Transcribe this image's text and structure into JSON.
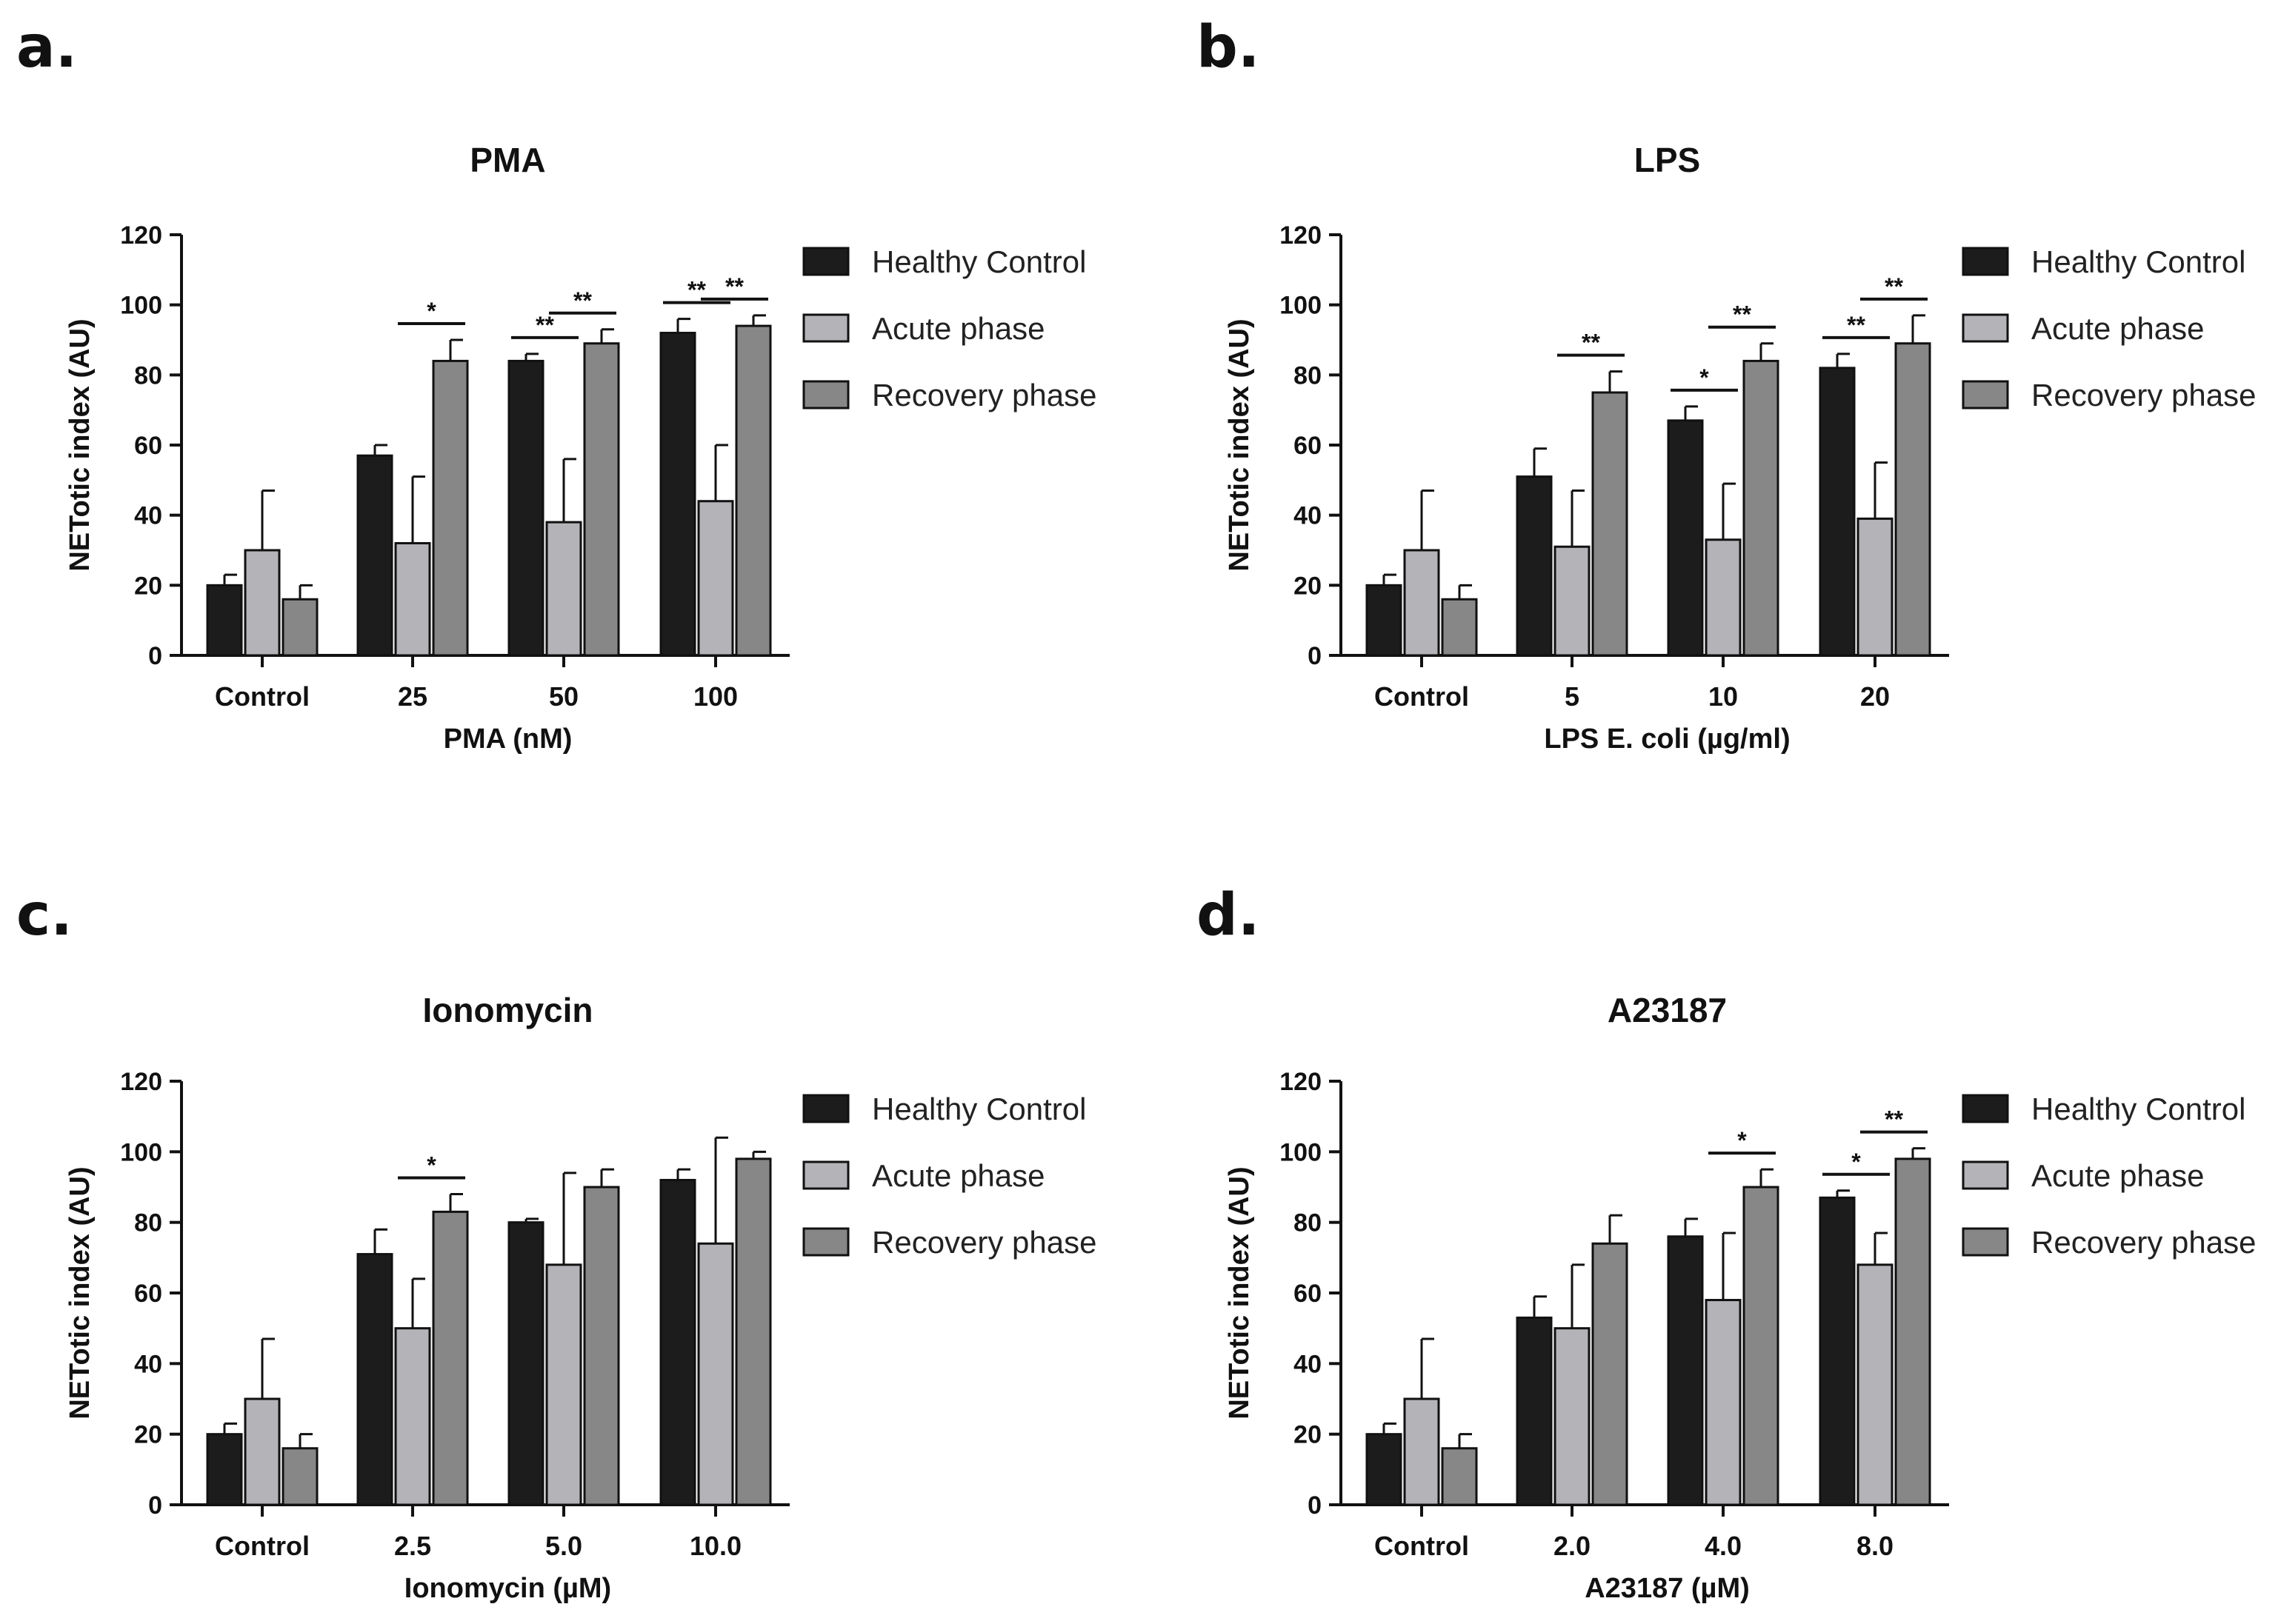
{
  "series_names": [
    "Healthy Control",
    "Acute phase",
    "Recovery phase"
  ],
  "series_colors": [
    "#1c1c1c",
    "#b3b3b8",
    "#878787"
  ],
  "chart_data": [
    {
      "panel_label": "a.",
      "type": "bar",
      "title": "PMA",
      "xlabel": "PMA (nM)",
      "ylabel": "NETotic index (AU)",
      "ylim": [
        0,
        120
      ],
      "yticks": [
        "0",
        "20",
        "40",
        "60",
        "80",
        "100",
        "120"
      ],
      "categories": [
        "Control",
        "25",
        "50",
        "100"
      ],
      "series": [
        {
          "name": "Healthy Control",
          "values": [
            20,
            57,
            84,
            92
          ],
          "errors": [
            3,
            3,
            2,
            4
          ]
        },
        {
          "name": "Acute phase",
          "values": [
            30,
            32,
            38,
            44
          ],
          "errors": [
            17,
            19,
            18,
            16
          ]
        },
        {
          "name": "Recovery phase",
          "values": [
            16,
            84,
            89,
            94
          ],
          "errors": [
            4,
            6,
            4,
            3
          ]
        }
      ],
      "significance": [
        {
          "category": 1,
          "from": 1,
          "to": 2,
          "label": "*"
        },
        {
          "category": 2,
          "from": 0,
          "to": 1,
          "label": "**"
        },
        {
          "category": 2,
          "from": 1,
          "to": 2,
          "label": "**"
        },
        {
          "category": 3,
          "from": 0,
          "to": 1,
          "label": "**"
        },
        {
          "category": 3,
          "from": 1,
          "to": 2,
          "label": "**"
        }
      ]
    },
    {
      "panel_label": "b.",
      "type": "bar",
      "title": "LPS",
      "xlabel": "LPS E. coli (µg/ml)",
      "ylabel": "NETotic index (AU)",
      "ylim": [
        0,
        120
      ],
      "yticks": [
        "0",
        "20",
        "40",
        "60",
        "80",
        "100",
        "120"
      ],
      "categories": [
        "Control",
        "5",
        "10",
        "20"
      ],
      "series": [
        {
          "name": "Healthy Control",
          "values": [
            20,
            51,
            67,
            82
          ],
          "errors": [
            3,
            8,
            4,
            4
          ]
        },
        {
          "name": "Acute phase",
          "values": [
            30,
            31,
            33,
            39
          ],
          "errors": [
            17,
            16,
            16,
            16
          ]
        },
        {
          "name": "Recovery phase",
          "values": [
            16,
            75,
            84,
            89
          ],
          "errors": [
            4,
            6,
            5,
            8
          ]
        }
      ],
      "significance": [
        {
          "category": 1,
          "from": 1,
          "to": 2,
          "label": "**"
        },
        {
          "category": 2,
          "from": 0,
          "to": 1,
          "label": "*"
        },
        {
          "category": 2,
          "from": 1,
          "to": 2,
          "label": "**"
        },
        {
          "category": 3,
          "from": 0,
          "to": 1,
          "label": "**"
        },
        {
          "category": 3,
          "from": 1,
          "to": 2,
          "label": "**"
        }
      ]
    },
    {
      "panel_label": "c.",
      "type": "bar",
      "title": "Ionomycin",
      "xlabel": "Ionomycin (µM)",
      "ylabel": "NETotic index (AU)",
      "ylim": [
        0,
        120
      ],
      "yticks": [
        "0",
        "20",
        "40",
        "60",
        "80",
        "100",
        "120"
      ],
      "categories": [
        "Control",
        "2.5",
        "5.0",
        "10.0"
      ],
      "series": [
        {
          "name": "Healthy Control",
          "values": [
            20,
            71,
            80,
            92
          ],
          "errors": [
            3,
            7,
            1,
            3
          ]
        },
        {
          "name": "Acute phase",
          "values": [
            30,
            50,
            68,
            74
          ],
          "errors": [
            17,
            14,
            26,
            30
          ]
        },
        {
          "name": "Recovery phase",
          "values": [
            16,
            83,
            90,
            98
          ],
          "errors": [
            4,
            5,
            5,
            2
          ]
        }
      ],
      "significance": [
        {
          "category": 1,
          "from": 1,
          "to": 2,
          "label": "*"
        }
      ]
    },
    {
      "panel_label": "d.",
      "type": "bar",
      "title": "A23187",
      "xlabel": "A23187 (µM)",
      "ylabel": "NETotic index (AU)",
      "ylim": [
        0,
        120
      ],
      "yticks": [
        "0",
        "20",
        "40",
        "60",
        "80",
        "100",
        "120"
      ],
      "categories": [
        "Control",
        "2.0",
        "4.0",
        "8.0"
      ],
      "series": [
        {
          "name": "Healthy Control",
          "values": [
            20,
            53,
            76,
            87
          ],
          "errors": [
            3,
            6,
            5,
            2
          ]
        },
        {
          "name": "Acute phase",
          "values": [
            30,
            50,
            58,
            68
          ],
          "errors": [
            17,
            18,
            19,
            9
          ]
        },
        {
          "name": "Recovery phase",
          "values": [
            16,
            74,
            90,
            98
          ],
          "errors": [
            4,
            8,
            5,
            3
          ]
        }
      ],
      "significance": [
        {
          "category": 2,
          "from": 1,
          "to": 2,
          "label": "*"
        },
        {
          "category": 3,
          "from": 0,
          "to": 1,
          "label": "*"
        },
        {
          "category": 3,
          "from": 1,
          "to": 2,
          "label": "**"
        }
      ]
    }
  ]
}
